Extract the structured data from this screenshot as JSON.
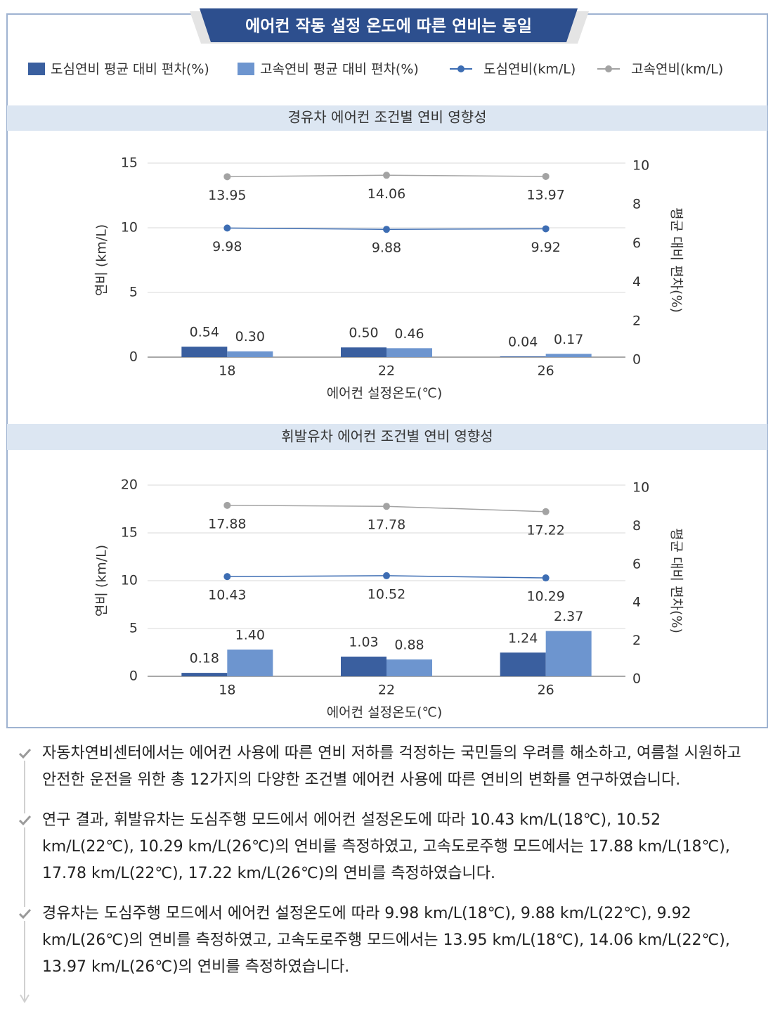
{
  "header": {
    "title": "에어컨 작동 설정 온도에 따른 연비는 동일"
  },
  "chart_data": [
    {
      "type": "combo",
      "title": "경유차 에어컨 조건별 연비 영향성",
      "x_label": "에어컨 설정온도(℃)",
      "y_label": "연비 (km/L)",
      "y2_label": "평균 대비 편차(%)",
      "categories": [
        "18",
        "22",
        "26"
      ],
      "ylim": [
        0,
        15
      ],
      "yticks": [
        0,
        5,
        10,
        15
      ],
      "y2lim": [
        0,
        10
      ],
      "y2ticks": [
        0,
        2,
        4,
        6,
        8,
        10
      ],
      "grid": true,
      "series": [
        {
          "name": "도심연비 평균 대비 편차(%)",
          "type": "bar",
          "axis": "y2",
          "color": "#3a5f9f",
          "values": [
            0.54,
            0.5,
            0.04
          ],
          "value_labels": [
            "0.54",
            "0.50",
            "0.04"
          ]
        },
        {
          "name": "고속연비 평균 대비 편차(%)",
          "type": "bar",
          "axis": "y2",
          "color": "#6d95cf",
          "values": [
            0.3,
            0.46,
            0.17
          ],
          "value_labels": [
            "0.30",
            "0.46",
            "0.17"
          ]
        },
        {
          "name": "도심연비(km/L)",
          "type": "line",
          "color": "#3d6db3",
          "values": [
            9.98,
            9.88,
            9.92
          ]
        },
        {
          "name": "고속연비(km/L)",
          "type": "line",
          "color": "#a3a3a3",
          "values": [
            13.95,
            14.06,
            13.97
          ]
        }
      ]
    },
    {
      "type": "combo",
      "title": "휘발유차 에어컨 조건별 연비 영향성",
      "x_label": "에어컨 설정온도(℃)",
      "y_label": "연비 (km/L)",
      "y2_label": "평균 대비 편차(%)",
      "categories": [
        "18",
        "22",
        "26"
      ],
      "ylim": [
        0,
        20
      ],
      "yticks": [
        0,
        5,
        10,
        15,
        20
      ],
      "y2lim": [
        0,
        10
      ],
      "y2ticks": [
        0,
        2,
        4,
        6,
        8,
        10
      ],
      "grid": true,
      "series": [
        {
          "type": "bar",
          "axis": "y2",
          "color": "#3a5f9f",
          "values": [
            0.18,
            1.03,
            1.24
          ],
          "value_labels": [
            "0.18",
            "1.03",
            "1.24"
          ]
        },
        {
          "type": "bar",
          "axis": "y2",
          "color": "#6d95cf",
          "values": [
            1.4,
            0.88,
            2.37
          ],
          "value_labels": [
            "1.40",
            "0.88",
            "2.37"
          ]
        },
        {
          "type": "line",
          "color": "#3d6db3",
          "values": [
            10.43,
            10.52,
            10.29
          ]
        },
        {
          "type": "line",
          "color": "#a3a3a3",
          "values": [
            17.88,
            17.78,
            17.22
          ]
        }
      ]
    }
  ],
  "bullets": [
    "자동차연비센터에서는 에어컨 사용에 따른 연비 저하를 걱정하는 국민들의 우려를 해소하고, 여름철 시원하고 안전한 운전을 위한 총 12가지의 다양한 조건별 에어컨 사용에 따른 연비의 변화를 연구하였습니다.",
    "연구 결과, 휘발유차는 도심주행 모드에서 에어컨 설정온도에 따라 10.43 km/L(18℃), 10.52 km/L(22℃), 10.29 km/L(26℃)의 연비를 측정하였고, 고속도로주행 모드에서는 17.88 km/L(18℃), 17.78 km/L(22℃), 17.22 km/L(26℃)의 연비를 측정하였습니다.",
    "경유차는 도심주행 모드에서 에어컨 설정온도에 따라 9.98 km/L(18℃), 9.88 km/L(22℃), 9.92 km/L(26℃)의 연비를 측정하였고, 고속도로주행 모드에서는 13.95 km/L(18℃), 14.06 km/L(22℃), 13.97 km/L(26℃)의 연비를 측정하였습니다."
  ]
}
